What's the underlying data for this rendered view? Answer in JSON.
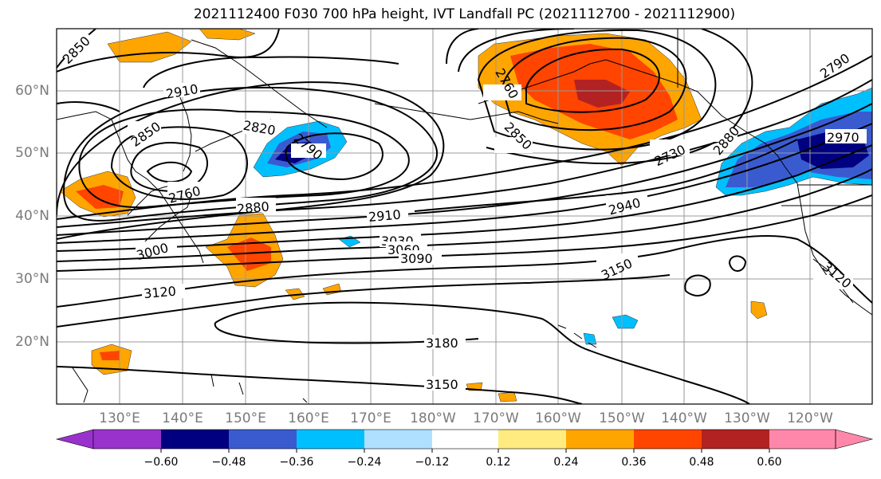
{
  "title": "2021112400 F030 700 hPa height, IVT Landfall PC (2021112700 - 2021112900)",
  "lat_labels": [
    "60°N",
    "50°N",
    "40°N",
    "30°N",
    "20°N"
  ],
  "lon_labels": [
    "130°E",
    "140°E",
    "150°E",
    "160°E",
    "170°E",
    "180°W",
    "170°W",
    "160°W",
    "150°W",
    "140°W",
    "130°W",
    "120°W"
  ],
  "colorbar": {
    "ticks": [
      "−0.60",
      "−0.48",
      "−0.36",
      "−0.24",
      "−0.12",
      "0.12",
      "0.24",
      "0.36",
      "0.48",
      "0.60"
    ],
    "colors": [
      "#9932cc",
      "#000080",
      "#3a5bd0",
      "#00bfff",
      "#b0e0ff",
      "#ffffff",
      "#ffeb80",
      "#ffa500",
      "#ff4500",
      "#b22222",
      "#ff88aa"
    ]
  },
  "contour_labels": [
    "2850",
    "2910",
    "2850",
    "2820",
    "2790",
    "2760",
    "2880",
    "2910",
    "3000",
    "3030",
    "3060",
    "3090",
    "3120",
    "3180",
    "3150",
    "2760",
    "2850",
    "2730",
    "2940",
    "3150",
    "2790",
    "2880",
    "2970",
    "3120"
  ]
}
